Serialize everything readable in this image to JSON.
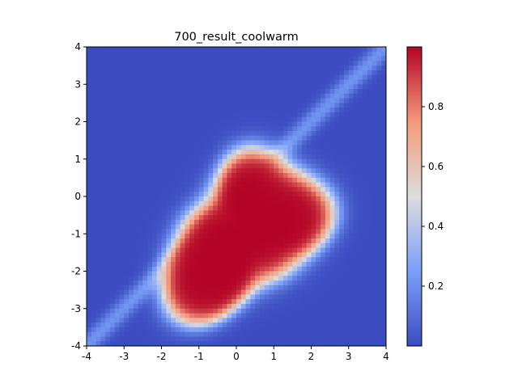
{
  "chart_data": {
    "type": "heatmap",
    "title": "700_result_coolwarm",
    "xlabel": "",
    "ylabel": "",
    "xlim": [
      -4,
      4
    ],
    "ylim": [
      -4,
      4
    ],
    "x_ticks": [
      "-4",
      "-3",
      "-2",
      "-1",
      "0",
      "1",
      "2",
      "3",
      "4"
    ],
    "y_ticks": [
      "4",
      "3",
      "2",
      "1",
      "0",
      "-1",
      "-2",
      "-3",
      "-4"
    ],
    "colormap": "coolwarm",
    "colorbar": {
      "range": [
        0,
        1
      ],
      "ticks": [
        "0.8",
        "0.6",
        "0.4",
        "0.2"
      ]
    },
    "grid": false,
    "grid_resolution": 64,
    "field_description": "Value near 1 inside an irregular blob centered near (0.2, -1.0) spanning roughly x in [-1.5, 2.5], y in [-3, 1]; a faint diagonal ridge along y = x; near 0 elsewhere.",
    "colors": {
      "low": "#3b4cc0",
      "mid": "#dddddd",
      "high": "#b40426"
    }
  }
}
